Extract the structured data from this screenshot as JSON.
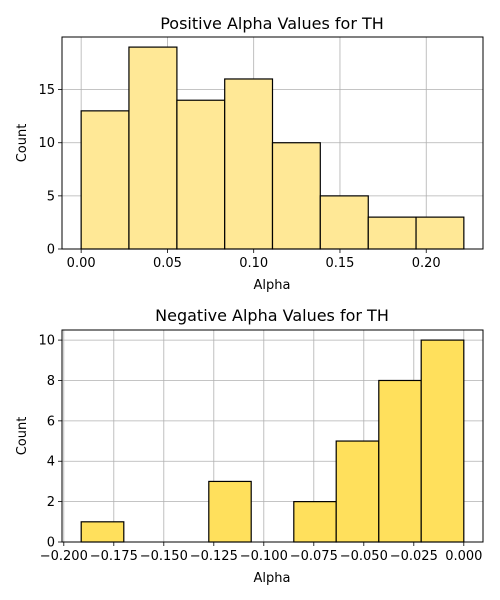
{
  "chart_data": [
    {
      "type": "bar",
      "title": "Positive Alpha Values for TH",
      "xlabel": "Alpha",
      "ylabel": "Count",
      "bins": [
        {
          "x0": 0.0,
          "x1": 0.0277,
          "count": 13
        },
        {
          "x0": 0.0277,
          "x1": 0.0555,
          "count": 19
        },
        {
          "x0": 0.0555,
          "x1": 0.0832,
          "count": 14
        },
        {
          "x0": 0.0832,
          "x1": 0.1109,
          "count": 16
        },
        {
          "x0": 0.1109,
          "x1": 0.1386,
          "count": 10
        },
        {
          "x0": 0.1386,
          "x1": 0.1664,
          "count": 5
        },
        {
          "x0": 0.1664,
          "x1": 0.1941,
          "count": 3
        },
        {
          "x0": 0.1941,
          "x1": 0.2218,
          "count": 3
        }
      ],
      "xlim": [
        -0.0111,
        0.2329
      ],
      "ylim": [
        0,
        19.95
      ],
      "xticks": [
        0.0,
        0.05,
        0.1,
        0.15,
        0.2
      ],
      "xtick_labels": [
        "0.00",
        "0.05",
        "0.10",
        "0.15",
        "0.20"
      ],
      "yticks": [
        0,
        5,
        10,
        15
      ],
      "ytick_labels": [
        "0",
        "5",
        "10",
        "15"
      ],
      "grid": true,
      "bar_color": "#FFE896",
      "edge_color": "#000000"
    },
    {
      "type": "bar",
      "title": "Negative Alpha Values for TH",
      "xlabel": "Alpha",
      "ylabel": "Count",
      "bins": [
        {
          "x0": -0.1913,
          "x1": -0.17,
          "count": 1
        },
        {
          "x0": -0.17,
          "x1": -0.1488,
          "count": 0
        },
        {
          "x0": -0.1488,
          "x1": -0.1275,
          "count": 0
        },
        {
          "x0": -0.1275,
          "x1": -0.1063,
          "count": 3
        },
        {
          "x0": -0.1063,
          "x1": -0.085,
          "count": 0
        },
        {
          "x0": -0.085,
          "x1": -0.0638,
          "count": 2
        },
        {
          "x0": -0.0638,
          "x1": -0.0425,
          "count": 5
        },
        {
          "x0": -0.0425,
          "x1": -0.0213,
          "count": 8
        },
        {
          "x0": -0.0213,
          "x1": 0.0,
          "count": 10
        }
      ],
      "xlim": [
        -0.2009,
        0.0096
      ],
      "ylim": [
        0,
        10.5
      ],
      "xticks": [
        -0.2,
        -0.175,
        -0.15,
        -0.125,
        -0.1,
        -0.075,
        -0.05,
        -0.025,
        0.0
      ],
      "xtick_labels": [
        "−0.200",
        "−0.175",
        "−0.150",
        "−0.125",
        "−0.100",
        "−0.075",
        "−0.050",
        "−0.025",
        "0.000"
      ],
      "yticks": [
        0,
        2,
        4,
        6,
        8,
        10
      ],
      "ytick_labels": [
        "0",
        "2",
        "4",
        "6",
        "8",
        "10"
      ],
      "grid": true,
      "bar_color": "#FFE05C",
      "edge_color": "#000000"
    }
  ]
}
